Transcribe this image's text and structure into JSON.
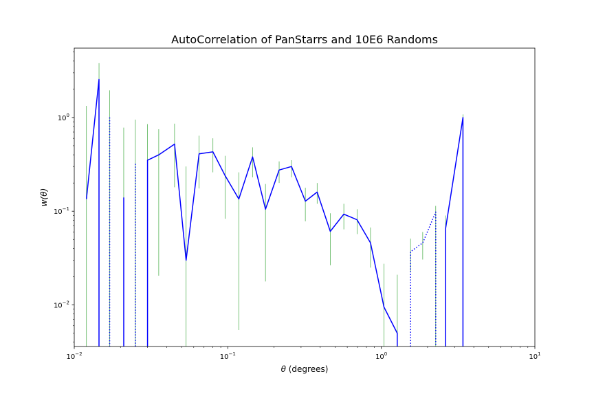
{
  "chart_data": {
    "type": "line",
    "title": "AutoCorrelation of PanStarrs and 10E6 Randoms",
    "xlabel_symbol": "θ",
    "xlabel_rest": " (degrees)",
    "ylabel": "w(θ)",
    "xscale": "log",
    "yscale": "log",
    "xlim": [
      0.01,
      10
    ],
    "ylim": [
      0.0036,
      5.5
    ],
    "x_ticks": [
      {
        "value": 0.01,
        "base": "10",
        "exp": "−2"
      },
      {
        "value": 0.1,
        "base": "10",
        "exp": "−1"
      },
      {
        "value": 1,
        "base": "10",
        "exp": "0"
      },
      {
        "value": 10,
        "base": "10",
        "exp": "1"
      }
    ],
    "y_ticks": [
      {
        "value": 0.01,
        "base": "10",
        "exp": "−2"
      },
      {
        "value": 0.1,
        "base": "10",
        "exp": "−1"
      },
      {
        "value": 1,
        "base": "10",
        "exp": "0"
      }
    ],
    "line_color": "#0000ff",
    "errorbar_color": "#2ca02c",
    "series": [
      {
        "style": "solid",
        "points": [
          [
            0.012,
            0.135
          ],
          [
            0.0145,
            2.55
          ],
          [
            0.0145,
            0.0001
          ]
        ]
      },
      {
        "style": "dotted",
        "points": [
          [
            0.017,
            1.0
          ],
          [
            0.017,
            0.0001
          ]
        ]
      },
      {
        "style": "solid",
        "points": [
          [
            0.021,
            0.14
          ],
          [
            0.021,
            0.0001
          ]
        ]
      },
      {
        "style": "dotted",
        "points": [
          [
            0.025,
            0.32
          ],
          [
            0.025,
            0.0001
          ]
        ]
      },
      {
        "style": "solid",
        "points": [
          [
            0.03,
            0.0001
          ],
          [
            0.03,
            0.35
          ],
          [
            0.0355,
            0.4
          ],
          [
            0.045,
            0.52
          ],
          [
            0.0535,
            0.03
          ],
          [
            0.065,
            0.41
          ],
          [
            0.08,
            0.43
          ],
          [
            0.096,
            0.24
          ],
          [
            0.118,
            0.135
          ],
          [
            0.145,
            0.38
          ],
          [
            0.176,
            0.105
          ],
          [
            0.216,
            0.275
          ],
          [
            0.26,
            0.3
          ],
          [
            0.32,
            0.128
          ],
          [
            0.382,
            0.16
          ],
          [
            0.465,
            0.061
          ],
          [
            0.57,
            0.093
          ],
          [
            0.695,
            0.081
          ],
          [
            0.85,
            0.046
          ],
          [
            1.04,
            0.0095
          ],
          [
            1.27,
            0.005
          ],
          [
            1.27,
            0.0001
          ]
        ]
      },
      {
        "style": "dotted",
        "points": [
          [
            1.55,
            0.0001
          ],
          [
            1.55,
            0.037
          ],
          [
            1.86,
            0.046
          ],
          [
            2.26,
            0.098
          ],
          [
            2.26,
            0.0001
          ]
        ]
      },
      {
        "style": "solid",
        "points": [
          [
            2.62,
            0.0001
          ],
          [
            2.62,
            0.065
          ],
          [
            3.4,
            1.0
          ],
          [
            3.4,
            0.0001
          ]
        ]
      }
    ],
    "error_bars": [
      {
        "x": 0.012,
        "low": 0.0001,
        "high": 1.33
      },
      {
        "x": 0.0145,
        "low": 0.0001,
        "high": 3.8
      },
      {
        "x": 0.017,
        "low": 0.0001,
        "high": 1.95
      },
      {
        "x": 0.021,
        "low": 0.0001,
        "high": 0.78
      },
      {
        "x": 0.025,
        "low": 0.0001,
        "high": 0.95
      },
      {
        "x": 0.03,
        "low": 0.0001,
        "high": 0.85
      },
      {
        "x": 0.0355,
        "low": 0.0205,
        "high": 0.75
      },
      {
        "x": 0.045,
        "low": 0.18,
        "high": 0.86
      },
      {
        "x": 0.0535,
        "low": 0.0001,
        "high": 0.3
      },
      {
        "x": 0.065,
        "low": 0.175,
        "high": 0.64
      },
      {
        "x": 0.08,
        "low": 0.26,
        "high": 0.6
      },
      {
        "x": 0.096,
        "low": 0.083,
        "high": 0.39
      },
      {
        "x": 0.118,
        "low": 0.0054,
        "high": 0.26
      },
      {
        "x": 0.145,
        "low": 0.23,
        "high": 0.48
      },
      {
        "x": 0.176,
        "low": 0.0178,
        "high": 0.195
      },
      {
        "x": 0.216,
        "low": 0.2,
        "high": 0.34
      },
      {
        "x": 0.26,
        "low": 0.23,
        "high": 0.35
      },
      {
        "x": 0.32,
        "low": 0.078,
        "high": 0.178
      },
      {
        "x": 0.382,
        "low": 0.12,
        "high": 0.2
      },
      {
        "x": 0.465,
        "low": 0.0265,
        "high": 0.095
      },
      {
        "x": 0.57,
        "low": 0.064,
        "high": 0.12
      },
      {
        "x": 0.695,
        "low": 0.057,
        "high": 0.105
      },
      {
        "x": 0.85,
        "low": 0.025,
        "high": 0.067
      },
      {
        "x": 1.04,
        "low": 0.0001,
        "high": 0.0275
      },
      {
        "x": 1.27,
        "low": 0.0001,
        "high": 0.021
      },
      {
        "x": 1.55,
        "low": 0.0222,
        "high": 0.051
      },
      {
        "x": 1.86,
        "low": 0.0305,
        "high": 0.06
      },
      {
        "x": 2.26,
        "low": 0.0001,
        "high": 0.114
      },
      {
        "x": 2.62,
        "low": 0.04,
        "high": 0.09
      },
      {
        "x": 3.4,
        "low": 0.0001,
        "high": 1.08
      }
    ]
  }
}
